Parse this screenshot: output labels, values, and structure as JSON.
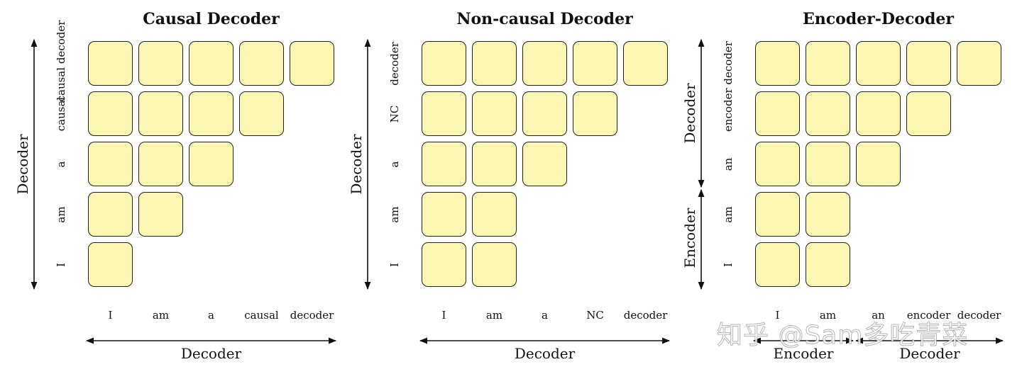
{
  "panels": [
    {
      "title": "Causal Decoder",
      "row_labels": [
        "causal decoder",
        "causal",
        "a",
        "am",
        "I"
      ],
      "row_counts": [
        5,
        4,
        3,
        2,
        1
      ],
      "col_labels": [
        "I",
        "am",
        "a",
        "causal",
        "decoder"
      ],
      "y_axis_labels": [
        "Decoder"
      ],
      "x_axis_labels": [
        "Decoder"
      ]
    },
    {
      "title": "Non-causal Decoder",
      "row_labels": [
        "decoder",
        "NC",
        "a",
        "am",
        "I"
      ],
      "row_counts": [
        5,
        4,
        3,
        2,
        2
      ],
      "col_labels": [
        "I",
        "am",
        "a",
        "NC",
        "decoder"
      ],
      "y_axis_labels": [
        "Decoder"
      ],
      "x_axis_labels": [
        "Decoder"
      ]
    },
    {
      "title": "Encoder-Decoder",
      "row_labels": [
        "encoder decoder",
        "",
        "an",
        "am",
        "I"
      ],
      "row_counts": [
        5,
        4,
        3,
        2,
        2
      ],
      "col_labels": [
        "I",
        "am",
        "an",
        "encoder",
        "decoder"
      ],
      "y_axis_labels": [
        "Decoder",
        "Encoder"
      ],
      "x_axis_labels": [
        "Encoder",
        "Decoder"
      ]
    }
  ],
  "colors": {
    "cell_fill": "#fbf7b2",
    "cell_border": "#222222",
    "arrow": "#111111"
  },
  "watermark": "知乎 @Sam多吃青菜"
}
